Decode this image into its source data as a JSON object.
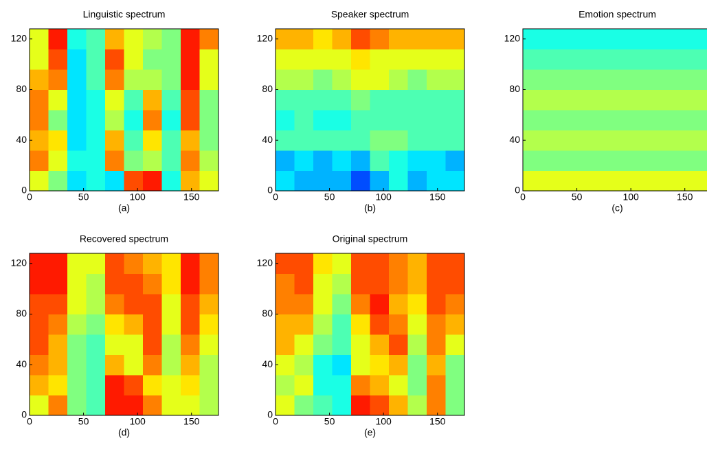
{
  "chart_data": [
    {
      "type": "heatmap",
      "title": "Linguistic spectrum",
      "caption": "(a)",
      "xlim": [
        0,
        175
      ],
      "ylim": [
        0,
        128
      ],
      "xticks": [
        0,
        50,
        100,
        150
      ],
      "yticks": [
        0,
        40,
        80,
        120
      ],
      "colormap": "jet",
      "z": [
        [
          0.6,
          0.5,
          0.35,
          0.4,
          0.35,
          0.8,
          0.85,
          0.4,
          0.7,
          0.6
        ],
        [
          0.75,
          0.6,
          0.4,
          0.4,
          0.75,
          0.5,
          0.55,
          0.45,
          0.75,
          0.55
        ],
        [
          0.7,
          0.65,
          0.35,
          0.4,
          0.7,
          0.45,
          0.65,
          0.45,
          0.7,
          0.5
        ],
        [
          0.75,
          0.5,
          0.35,
          0.4,
          0.55,
          0.4,
          0.75,
          0.4,
          0.8,
          0.5
        ],
        [
          0.75,
          0.6,
          0.35,
          0.4,
          0.6,
          0.45,
          0.7,
          0.45,
          0.8,
          0.5
        ],
        [
          0.7,
          0.75,
          0.35,
          0.45,
          0.75,
          0.55,
          0.55,
          0.5,
          0.85,
          0.6
        ],
        [
          0.6,
          0.8,
          0.35,
          0.45,
          0.8,
          0.6,
          0.5,
          0.5,
          0.85,
          0.6
        ],
        [
          0.6,
          0.85,
          0.4,
          0.45,
          0.7,
          0.6,
          0.55,
          0.5,
          0.85,
          0.75
        ]
      ]
    },
    {
      "type": "heatmap",
      "title": "Speaker spectrum",
      "caption": "(b)",
      "xlim": [
        0,
        175
      ],
      "ylim": [
        0,
        128
      ],
      "xticks": [
        0,
        50,
        100,
        150
      ],
      "yticks": [
        0,
        40,
        80,
        120
      ],
      "colormap": "jet",
      "z": [
        [
          0.35,
          0.3,
          0.3,
          0.3,
          0.2,
          0.3,
          0.4,
          0.3,
          0.35,
          0.35
        ],
        [
          0.3,
          0.35,
          0.3,
          0.35,
          0.3,
          0.45,
          0.4,
          0.35,
          0.35,
          0.3
        ],
        [
          0.45,
          0.45,
          0.45,
          0.45,
          0.45,
          0.5,
          0.5,
          0.45,
          0.45,
          0.45
        ],
        [
          0.4,
          0.45,
          0.4,
          0.4,
          0.45,
          0.45,
          0.45,
          0.45,
          0.45,
          0.45
        ],
        [
          0.45,
          0.45,
          0.45,
          0.45,
          0.5,
          0.45,
          0.45,
          0.45,
          0.45,
          0.45
        ],
        [
          0.55,
          0.55,
          0.5,
          0.55,
          0.6,
          0.6,
          0.55,
          0.5,
          0.55,
          0.55
        ],
        [
          0.6,
          0.6,
          0.6,
          0.6,
          0.65,
          0.6,
          0.6,
          0.6,
          0.6,
          0.6
        ],
        [
          0.7,
          0.7,
          0.65,
          0.7,
          0.8,
          0.75,
          0.7,
          0.7,
          0.7,
          0.7
        ]
      ]
    },
    {
      "type": "heatmap",
      "title": "Emotion spectrum",
      "caption": "(c)",
      "xlim": [
        0,
        175
      ],
      "ylim": [
        0,
        128
      ],
      "xticks": [
        0,
        50,
        100,
        150
      ],
      "yticks": [
        0,
        40,
        80,
        120
      ],
      "colormap": "jet",
      "z": [
        [
          0.6,
          0.6,
          0.6,
          0.6,
          0.6,
          0.6,
          0.6,
          0.6,
          0.6,
          0.6
        ],
        [
          0.5,
          0.5,
          0.5,
          0.5,
          0.5,
          0.5,
          0.5,
          0.5,
          0.5,
          0.5
        ],
        [
          0.55,
          0.55,
          0.55,
          0.55,
          0.55,
          0.55,
          0.55,
          0.55,
          0.55,
          0.55
        ],
        [
          0.5,
          0.5,
          0.5,
          0.5,
          0.5,
          0.5,
          0.5,
          0.5,
          0.5,
          0.5
        ],
        [
          0.55,
          0.55,
          0.55,
          0.55,
          0.55,
          0.55,
          0.55,
          0.55,
          0.55,
          0.55
        ],
        [
          0.5,
          0.5,
          0.5,
          0.5,
          0.5,
          0.5,
          0.5,
          0.5,
          0.5,
          0.5
        ],
        [
          0.45,
          0.45,
          0.45,
          0.45,
          0.45,
          0.45,
          0.45,
          0.45,
          0.45,
          0.45
        ],
        [
          0.4,
          0.4,
          0.4,
          0.4,
          0.4,
          0.4,
          0.4,
          0.4,
          0.4,
          0.4
        ]
      ]
    },
    {
      "type": "heatmap",
      "title": "Recovered spectrum",
      "caption": "(d)",
      "xlim": [
        0,
        175
      ],
      "ylim": [
        0,
        128
      ],
      "xticks": [
        0,
        50,
        100,
        150
      ],
      "yticks": [
        0,
        40,
        80,
        120
      ],
      "colormap": "jet",
      "z": [
        [
          0.6,
          0.75,
          0.5,
          0.45,
          0.85,
          0.85,
          0.75,
          0.6,
          0.6,
          0.55
        ],
        [
          0.7,
          0.65,
          0.5,
          0.45,
          0.85,
          0.8,
          0.65,
          0.6,
          0.65,
          0.55
        ],
        [
          0.75,
          0.7,
          0.5,
          0.45,
          0.7,
          0.6,
          0.75,
          0.55,
          0.7,
          0.55
        ],
        [
          0.8,
          0.7,
          0.5,
          0.45,
          0.6,
          0.6,
          0.8,
          0.55,
          0.75,
          0.6
        ],
        [
          0.8,
          0.75,
          0.55,
          0.5,
          0.65,
          0.7,
          0.8,
          0.6,
          0.8,
          0.65
        ],
        [
          0.8,
          0.8,
          0.6,
          0.55,
          0.75,
          0.8,
          0.8,
          0.6,
          0.8,
          0.7
        ],
        [
          0.85,
          0.85,
          0.6,
          0.55,
          0.8,
          0.8,
          0.75,
          0.65,
          0.85,
          0.75
        ],
        [
          0.85,
          0.85,
          0.6,
          0.6,
          0.8,
          0.75,
          0.7,
          0.65,
          0.85,
          0.75
        ]
      ]
    },
    {
      "type": "heatmap",
      "title": "Original spectrum",
      "caption": "(e)",
      "xlim": [
        0,
        175
      ],
      "ylim": [
        0,
        128
      ],
      "xticks": [
        0,
        50,
        100,
        150
      ],
      "yticks": [
        0,
        40,
        80,
        120
      ],
      "colormap": "jet",
      "z": [
        [
          0.6,
          0.5,
          0.45,
          0.4,
          0.85,
          0.8,
          0.7,
          0.55,
          0.75,
          0.5
        ],
        [
          0.55,
          0.6,
          0.4,
          0.4,
          0.75,
          0.7,
          0.6,
          0.5,
          0.75,
          0.5
        ],
        [
          0.6,
          0.55,
          0.4,
          0.35,
          0.6,
          0.65,
          0.7,
          0.5,
          0.7,
          0.5
        ],
        [
          0.7,
          0.6,
          0.5,
          0.45,
          0.6,
          0.7,
          0.8,
          0.55,
          0.75,
          0.6
        ],
        [
          0.7,
          0.7,
          0.55,
          0.45,
          0.65,
          0.8,
          0.75,
          0.6,
          0.75,
          0.7
        ],
        [
          0.75,
          0.75,
          0.6,
          0.5,
          0.75,
          0.85,
          0.7,
          0.65,
          0.8,
          0.75
        ],
        [
          0.75,
          0.8,
          0.6,
          0.55,
          0.8,
          0.8,
          0.75,
          0.7,
          0.8,
          0.8
        ],
        [
          0.8,
          0.8,
          0.65,
          0.6,
          0.8,
          0.8,
          0.75,
          0.7,
          0.8,
          0.8
        ]
      ]
    }
  ]
}
